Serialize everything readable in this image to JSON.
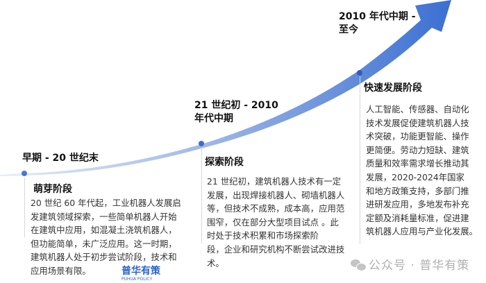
{
  "colors": {
    "curve_start": "#c9d6ef",
    "curve_end": "#3b6fd2",
    "dot": "#4a78d0",
    "text": "#333333"
  },
  "stages": [
    {
      "period": [
        "早期 - 20 世纪末"
      ],
      "title": "萌芽阶段",
      "body": [
        "20 世纪 60 年代起，工业机器人发展启",
        "发建筑领域探索，一些简单机器人开始",
        "在建筑中应用，如混凝土浇筑机器人，",
        "但功能简单，未广泛应用。这一时期，",
        "建筑机器人处于初步尝试阶段，技术和",
        "应用场景有限。"
      ]
    },
    {
      "period": [
        "21 世纪初 - 2010",
        "年代中期"
      ],
      "title": "探索阶段",
      "body": [
        "21 世纪初，建筑机器人技术有一定",
        "发展，出现焊接机器人、砌墙机器人",
        "等，但技术不成熟，成本高，应用范",
        "围窄，仅在部分大型项目试点 。此",
        "时处于技术积累和市场探索阶",
        "段，企业和研究机构不断尝试改进技",
        "术。"
      ]
    },
    {
      "period": [
        "2010 年代中期 -",
        "至今"
      ],
      "title": "快速发展阶段",
      "body": [
        "人工智能、传感器、自动化",
        "技术发展促使建筑机器人技",
        "术突破，功能更智能、操作",
        "更简便。劳动力短缺、建筑",
        "质量和效率需求增长推动其",
        "发展，2020-2024年国家",
        "和地方政策支持，多部门推",
        "进研发应用，多地发布补充",
        "定额及消耗量标准，促进建",
        "筑机器人应用与产业化发展。"
      ]
    }
  ],
  "logo": {
    "name": "普华有策",
    "sub": "PUHUA POLICY"
  },
  "watermark": "公众号 · 普华有策"
}
